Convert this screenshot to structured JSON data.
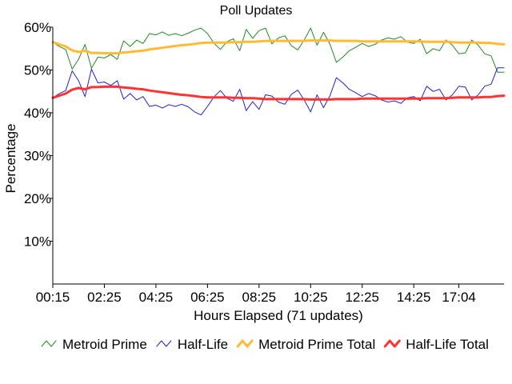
{
  "chart_data": {
    "type": "line",
    "title": "Poll Updates",
    "xlabel": "Hours Elapsed (71 updates)",
    "ylabel": "Percentage",
    "ylim": [
      0,
      60
    ],
    "yticks": [
      10,
      20,
      30,
      40,
      50,
      60
    ],
    "ytick_labels": [
      "10%",
      "20%",
      "30%",
      "40%",
      "50%",
      "60%"
    ],
    "xticks": [
      0,
      8,
      16,
      24,
      32,
      40,
      48,
      56,
      63
    ],
    "xtick_labels": [
      "00:15",
      "02:25",
      "04:25",
      "06:25",
      "08:25",
      "10:25",
      "12:25",
      "14:25",
      "17:04"
    ],
    "x_count": 71,
    "legend_position": "bottom",
    "series": [
      {
        "name": "Metroid Prime",
        "color": "#228b22",
        "width": 1,
        "values": [
          56.5,
          55.5,
          54.8,
          50.2,
          52.5,
          56.0,
          50.4,
          53.0,
          52.8,
          53.6,
          52.5,
          56.8,
          55.5,
          57.0,
          56.2,
          58.5,
          58.2,
          58.9,
          58.1,
          58.5,
          58.0,
          58.6,
          59.3,
          59.8,
          58.5,
          56.3,
          54.8,
          56.6,
          57.3,
          54.5,
          59.5,
          57.4,
          59.2,
          59.8,
          56.1,
          57.5,
          58.0,
          55.7,
          54.7,
          57.0,
          59.8,
          55.8,
          58.8,
          56.0,
          51.8,
          53.0,
          54.5,
          55.3,
          56.2,
          55.5,
          56.0,
          57.0,
          57.5,
          57.2,
          57.8,
          56.5,
          56.2,
          57.2,
          53.8,
          55.0,
          54.5,
          57.0,
          55.8,
          53.8,
          54.0,
          57.0,
          55.8,
          53.8,
          53.3,
          49.5,
          49.5
        ]
      },
      {
        "name": "Half-Life",
        "color": "#2222cc",
        "width": 1,
        "values": [
          43.5,
          44.5,
          45.2,
          49.8,
          47.5,
          43.8,
          50.2,
          47.0,
          47.2,
          46.4,
          47.5,
          43.2,
          44.5,
          43.0,
          43.8,
          41.5,
          41.8,
          41.1,
          41.9,
          41.5,
          42.0,
          41.4,
          40.2,
          39.5,
          41.5,
          43.7,
          45.2,
          43.4,
          42.7,
          45.5,
          40.5,
          42.6,
          40.8,
          44.2,
          43.9,
          42.5,
          42.0,
          44.3,
          45.3,
          43.0,
          40.2,
          44.2,
          41.2,
          44.0,
          48.2,
          47.0,
          45.5,
          44.7,
          43.8,
          44.5,
          44.0,
          43.0,
          42.5,
          42.8,
          42.2,
          43.5,
          43.8,
          42.8,
          46.2,
          45.0,
          45.5,
          43.0,
          44.2,
          46.2,
          46.0,
          43.0,
          44.2,
          46.2,
          46.7,
          50.5,
          50.5
        ]
      },
      {
        "name": "Metroid Prime Total",
        "color": "#ffbb33",
        "width": 3,
        "values": [
          56.5,
          56.0,
          55.5,
          54.6,
          54.2,
          54.5,
          54.0,
          54.0,
          53.9,
          53.9,
          53.9,
          54.1,
          54.2,
          54.4,
          54.5,
          54.8,
          55.0,
          55.2,
          55.4,
          55.6,
          55.8,
          55.9,
          56.1,
          56.3,
          56.4,
          56.4,
          56.4,
          56.4,
          56.5,
          56.5,
          56.6,
          56.6,
          56.7,
          56.8,
          56.8,
          56.8,
          56.8,
          56.8,
          56.8,
          56.8,
          56.9,
          56.9,
          56.9,
          56.9,
          56.8,
          56.8,
          56.8,
          56.8,
          56.7,
          56.7,
          56.7,
          56.7,
          56.7,
          56.7,
          56.7,
          56.7,
          56.7,
          56.7,
          56.6,
          56.6,
          56.6,
          56.6,
          56.5,
          56.4,
          56.4,
          56.4,
          56.4,
          56.3,
          56.3,
          56.1,
          56.0
        ]
      },
      {
        "name": "Half-Life Total",
        "color": "#ff3333",
        "width": 3,
        "values": [
          43.5,
          44.0,
          44.5,
          45.4,
          45.8,
          45.5,
          46.0,
          46.0,
          46.1,
          46.1,
          46.1,
          45.9,
          45.8,
          45.6,
          45.5,
          45.2,
          45.0,
          44.8,
          44.6,
          44.4,
          44.2,
          44.1,
          43.9,
          43.7,
          43.6,
          43.6,
          43.6,
          43.6,
          43.5,
          43.5,
          43.4,
          43.4,
          43.3,
          43.2,
          43.2,
          43.2,
          43.2,
          43.2,
          43.2,
          43.2,
          43.1,
          43.1,
          43.1,
          43.1,
          43.2,
          43.2,
          43.2,
          43.2,
          43.3,
          43.3,
          43.3,
          43.3,
          43.3,
          43.3,
          43.3,
          43.3,
          43.3,
          43.3,
          43.4,
          43.4,
          43.4,
          43.4,
          43.5,
          43.6,
          43.6,
          43.6,
          43.6,
          43.7,
          43.7,
          43.9,
          44.0
        ]
      }
    ]
  }
}
